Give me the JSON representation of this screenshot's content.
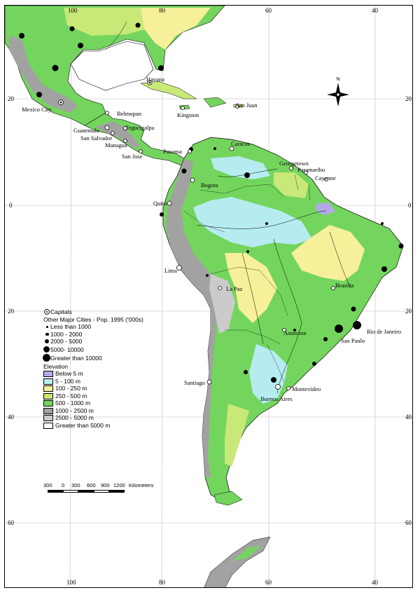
{
  "map": {
    "colors": {
      "below5": "#b4a8ec",
      "e5_100": "#b6ecf0",
      "e100_250": "#f6f09a",
      "e250_500": "#c8e878",
      "e500_1000": "#74d55e",
      "e1000_2500": "#a2a2a2",
      "e2500_5000": "#cbcbcb",
      "e5000plus": "#ffffff",
      "ocean": "#ffffff"
    },
    "grid_labels": {
      "lon_top": [
        "100",
        "80",
        "60",
        "40"
      ],
      "lon_bottom": [
        "100",
        "80",
        "60",
        "40"
      ],
      "lat_left": [
        "20",
        "0",
        "20",
        "40",
        "60"
      ],
      "lat_right": [
        "20",
        "0",
        "20",
        "40",
        "60"
      ]
    },
    "compass_label": "N",
    "cities": [
      {
        "name": "Havana"
      },
      {
        "name": "Mexico City"
      },
      {
        "name": "Belmopan"
      },
      {
        "name": "Kingston"
      },
      {
        "name": "San Juan"
      },
      {
        "name": "Guatemala"
      },
      {
        "name": "Tegucigalpa"
      },
      {
        "name": "San Salvador"
      },
      {
        "name": "Managua"
      },
      {
        "name": "San Jose"
      },
      {
        "name": "Caracas"
      },
      {
        "name": "Panama"
      },
      {
        "name": "Georgetown"
      },
      {
        "name": "Paramaribo"
      },
      {
        "name": "Cayenne"
      },
      {
        "name": "Bogota"
      },
      {
        "name": "Quito"
      },
      {
        "name": "Lima"
      },
      {
        "name": "La Paz"
      },
      {
        "name": "Brasilia"
      },
      {
        "name": "Asuncion"
      },
      {
        "name": "Rio de Janeiro"
      },
      {
        "name": "Sao Paulo"
      },
      {
        "name": "Santiago"
      },
      {
        "name": "Montevideo"
      },
      {
        "name": "Buenos Aires"
      }
    ],
    "legend": {
      "capitals": "Capitals",
      "cities_title": "Other Major Cities - Pop. 1995 ('000s)",
      "sizes": [
        "Less than 1000",
        "1000 - 2000",
        "2000 - 5000",
        "5000- 10000",
        "Greater than 10000"
      ],
      "elevation_title": "Elevation",
      "elevation": [
        "Below 5 m",
        "5 - 100 m",
        "100 - 250 m",
        "250 - 500 m",
        "500 - 1000 m",
        "1000 - 2500 m",
        "2500 - 5000 m",
        "Greater than 5000 m"
      ]
    },
    "scale": {
      "labels": [
        "300",
        "0",
        "300",
        "600",
        "900",
        "1200"
      ],
      "unit": "Kilometers"
    }
  }
}
